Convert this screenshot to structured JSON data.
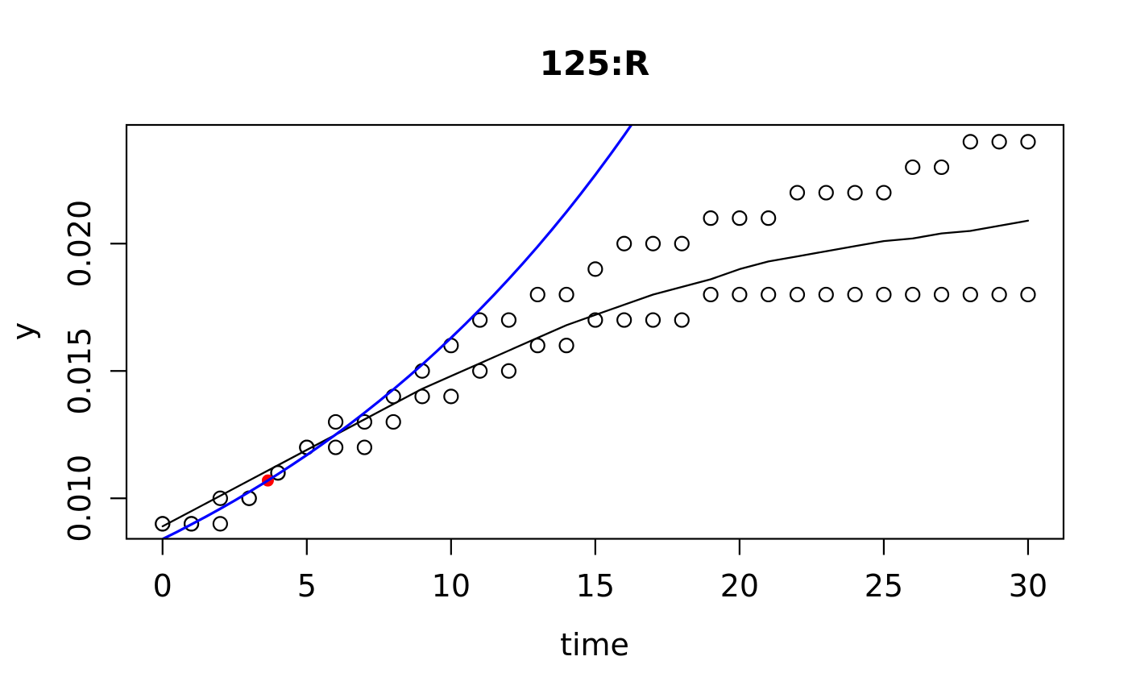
{
  "chart": {
    "title": "125:R",
    "xlabel": "time",
    "ylabel": "y"
  },
  "colors": {
    "foreground": "#000000",
    "exponential_line": "#0000ff",
    "highlight_point": "#ff0000",
    "background": "#ffffff"
  },
  "chart_data": {
    "type": "scatter",
    "title": "125:R",
    "xlabel": "time",
    "ylabel": "y",
    "xlim": [
      -1.25,
      31.23
    ],
    "ylim": [
      0.00841,
      0.02466
    ],
    "grid": false,
    "legend": "none",
    "x_ticks": {
      "values": [
        0,
        5,
        10,
        15,
        20,
        25,
        30
      ],
      "labels": [
        "0",
        "5",
        "10",
        "15",
        "20",
        "25",
        "30"
      ]
    },
    "y_ticks": {
      "values": [
        0.01,
        0.015,
        0.02
      ],
      "labels": [
        "0.010",
        "0.015",
        "0.020"
      ]
    },
    "series": [
      {
        "name": "observed-points-lower",
        "kind": "points",
        "marker": "open-circle",
        "color": "#000000",
        "x": [
          0,
          1,
          2,
          3,
          4,
          5,
          6,
          7,
          8,
          9,
          10,
          11,
          12,
          13,
          14,
          15,
          16,
          17,
          18,
          19,
          20,
          21,
          22,
          23,
          24,
          25,
          26,
          27,
          28,
          29,
          30
        ],
        "y": [
          0.009,
          0.009,
          0.009,
          0.01,
          0.011,
          0.012,
          0.012,
          0.012,
          0.013,
          0.014,
          0.014,
          0.015,
          0.015,
          0.016,
          0.016,
          0.017,
          0.017,
          0.017,
          0.017,
          0.018,
          0.018,
          0.018,
          0.018,
          0.018,
          0.018,
          0.018,
          0.018,
          0.018,
          0.018,
          0.018,
          0.018
        ]
      },
      {
        "name": "observed-points-upper",
        "kind": "points",
        "marker": "open-circle",
        "color": "#000000",
        "x": [
          0,
          1,
          2,
          3,
          4,
          5,
          6,
          7,
          8,
          9,
          10,
          11,
          12,
          13,
          14,
          15,
          16,
          17,
          18,
          19,
          20,
          21,
          22,
          23,
          24,
          25,
          26,
          27,
          28,
          29,
          30
        ],
        "y": [
          0.009,
          0.009,
          0.01,
          0.01,
          0.011,
          0.012,
          0.013,
          0.013,
          0.014,
          0.015,
          0.016,
          0.017,
          0.017,
          0.018,
          0.018,
          0.019,
          0.02,
          0.02,
          0.02,
          0.021,
          0.021,
          0.021,
          0.022,
          0.022,
          0.022,
          0.022,
          0.023,
          0.023,
          0.024,
          0.024,
          0.024
        ]
      },
      {
        "name": "highlight-point",
        "kind": "filled-point",
        "marker": "filled-circle",
        "color": "#ff0000",
        "x": [
          3.65
        ],
        "y": [
          0.0107
        ]
      },
      {
        "name": "logistic-fit-curve",
        "kind": "line",
        "color": "#000000",
        "width": 2.3,
        "x": [
          0,
          1,
          2,
          3,
          4,
          5,
          6,
          7,
          8,
          9,
          10,
          11,
          12,
          13,
          14,
          15,
          16,
          17,
          18,
          19,
          20,
          21,
          22,
          23,
          24,
          25,
          26,
          27,
          28,
          29,
          30
        ],
        "y": [
          0.0089,
          0.0095,
          0.0101,
          0.0107,
          0.0113,
          0.0119,
          0.0125,
          0.0131,
          0.0137,
          0.0143,
          0.0148,
          0.0153,
          0.0158,
          0.0163,
          0.0168,
          0.0172,
          0.0176,
          0.018,
          0.0183,
          0.0186,
          0.019,
          0.0193,
          0.0195,
          0.0197,
          0.0199,
          0.0201,
          0.0202,
          0.0204,
          0.0205,
          0.0207,
          0.0209
        ]
      },
      {
        "name": "exponential-growth-curve",
        "kind": "line",
        "color": "#0000ff",
        "width": 3.2,
        "x": [
          0,
          0.5,
          1,
          1.5,
          2,
          2.5,
          3,
          3.5,
          4,
          4.5,
          5,
          5.5,
          6,
          6.5,
          7,
          7.5,
          8,
          8.5,
          9,
          9.5,
          10,
          10.5,
          11,
          11.5,
          12,
          12.5,
          13,
          13.5,
          14,
          14.5,
          15,
          15.5,
          16,
          16.3
        ],
        "y": [
          0.0084,
          0.008683,
          0.008976,
          0.009278,
          0.009591,
          0.009914,
          0.010248,
          0.010594,
          0.010951,
          0.01132,
          0.011701,
          0.012095,
          0.012503,
          0.012924,
          0.01336,
          0.01381,
          0.014275,
          0.014756,
          0.015253,
          0.015767,
          0.016298,
          0.016847,
          0.017415,
          0.018002,
          0.018608,
          0.019235,
          0.019883,
          0.020553,
          0.021245,
          0.021961,
          0.022701,
          0.023466,
          0.024256,
          0.024743
        ]
      }
    ]
  }
}
